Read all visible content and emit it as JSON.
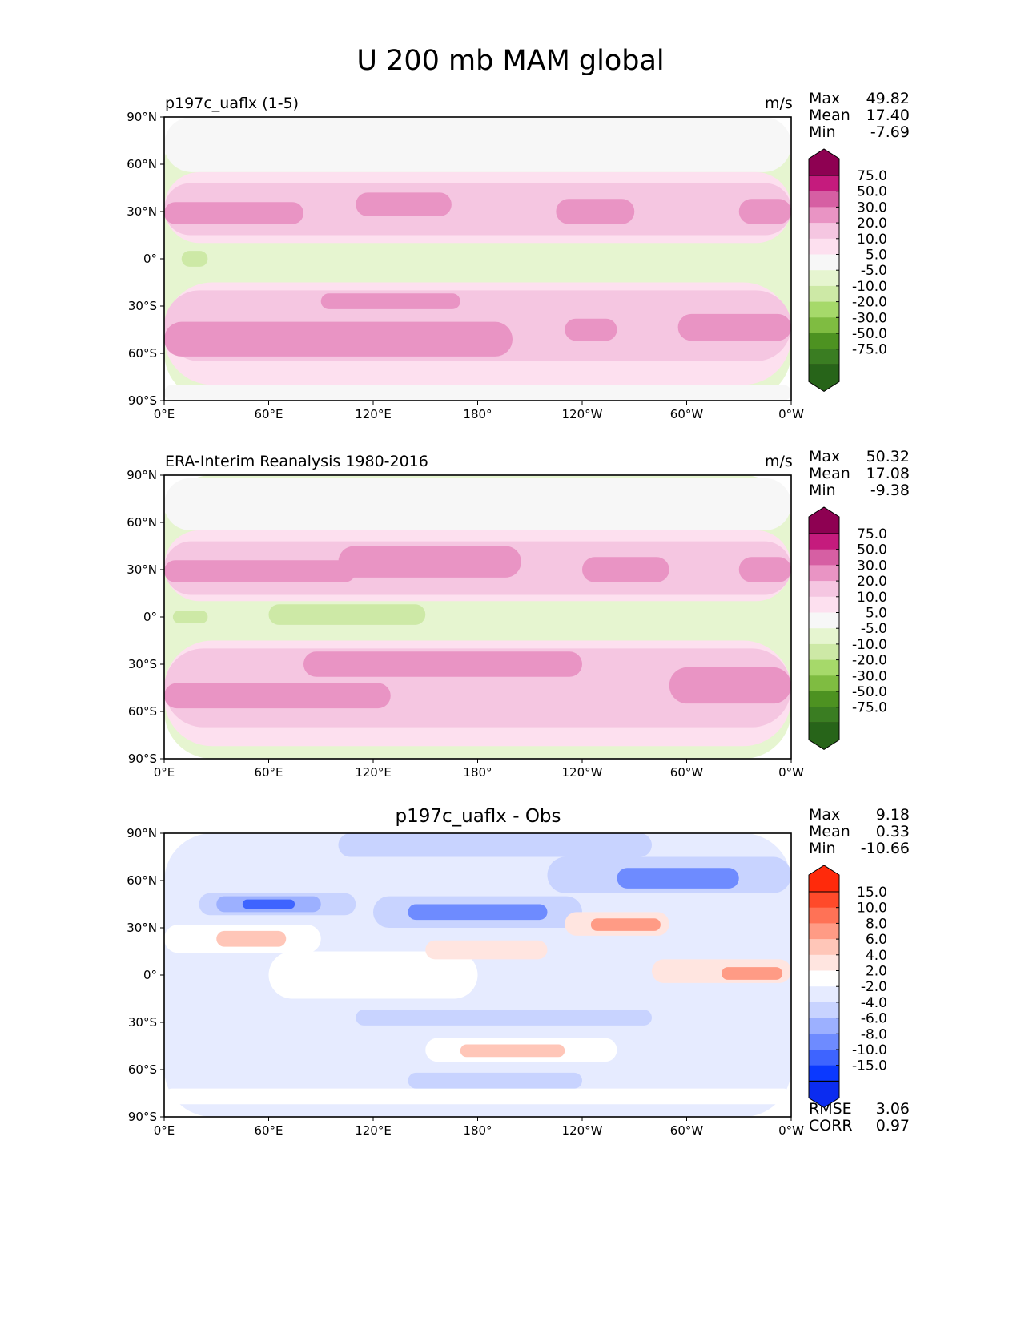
{
  "title": "U 200 mb MAM global",
  "panels": [
    {
      "id": "test",
      "left_title": "p197c_uaflx (1-5)",
      "center_title": "",
      "units": "m/s",
      "stats": [
        {
          "label": "Max",
          "value": "49.82"
        },
        {
          "label": "Mean",
          "value": "17.40"
        },
        {
          "label": "Min",
          "value": "-7.69"
        }
      ],
      "extra_stats": []
    },
    {
      "id": "ref",
      "left_title": "ERA-Interim Reanalysis 1980-2016",
      "center_title": "",
      "units": "m/s",
      "stats": [
        {
          "label": "Max",
          "value": "50.32"
        },
        {
          "label": "Mean",
          "value": "17.08"
        },
        {
          "label": "Min",
          "value": "-9.38"
        }
      ],
      "extra_stats": []
    },
    {
      "id": "diff",
      "left_title": "",
      "center_title": "p197c_uaflx - Obs",
      "units": "",
      "stats": [
        {
          "label": "Max",
          "value": "9.18"
        },
        {
          "label": "Mean",
          "value": "0.33"
        },
        {
          "label": "Min",
          "value": "-10.66"
        }
      ],
      "extra_stats": [
        {
          "label": "RMSE",
          "value": "3.06"
        },
        {
          "label": "CORR",
          "value": "0.97"
        }
      ]
    }
  ],
  "chart_data": [
    {
      "type": "heatmap",
      "title": "p197c_uaflx (1-5)",
      "units": "m/s",
      "x_ticks": [
        "0°E",
        "60°E",
        "120°E",
        "180°",
        "120°W",
        "60°W",
        "0°W"
      ],
      "y_ticks": [
        "90°N",
        "60°N",
        "30°N",
        "0°",
        "30°S",
        "60°S",
        "90°S"
      ],
      "xlim": [
        0,
        360
      ],
      "ylim": [
        -90,
        90
      ],
      "levels": [
        "-75.0",
        "-50.0",
        "-30.0",
        "-20.0",
        "-10.0",
        "-5.0",
        "5.0",
        "10.0",
        "20.0",
        "30.0",
        "50.0",
        "75.0"
      ],
      "colors": [
        "#276419",
        "#3a7d22",
        "#4d9221",
        "#7fbc41",
        "#a6d96a",
        "#cde9a6",
        "#e6f5d0",
        "#f7f7f7",
        "#fde0ef",
        "#f5c6e1",
        "#e994c4",
        "#d65fa3",
        "#c51b7d",
        "#8e0152"
      ],
      "bands": [
        {
          "lon": [
            0,
            360
          ],
          "lat": [
            -90,
            90
          ],
          "val": 2
        },
        {
          "lon": [
            0,
            360
          ],
          "lat": [
            55,
            90
          ],
          "val": 7
        },
        {
          "lon": [
            0,
            360
          ],
          "lat": [
            10,
            55
          ],
          "val": 15
        },
        {
          "lon": [
            0,
            360
          ],
          "lat": [
            15,
            48
          ],
          "val": 22
        },
        {
          "lon": [
            0,
            360
          ],
          "lat": [
            20,
            38
          ],
          "val": 26
        },
        {
          "lon": [
            0,
            80
          ],
          "lat": [
            22,
            36
          ],
          "val": 35
        },
        {
          "lon": [
            110,
            165
          ],
          "lat": [
            27,
            42
          ],
          "val": 35
        },
        {
          "lon": [
            225,
            270
          ],
          "lat": [
            22,
            38
          ],
          "val": 35
        },
        {
          "lon": [
            330,
            360
          ],
          "lat": [
            22,
            38
          ],
          "val": 35
        },
        {
          "lon": [
            0,
            360
          ],
          "lat": [
            -15,
            10
          ],
          "val": 2
        },
        {
          "lon": [
            0,
            360
          ],
          "lat": [
            -80,
            -15
          ],
          "val": 15
        },
        {
          "lon": [
            0,
            360
          ],
          "lat": [
            -65,
            -20
          ],
          "val": 22
        },
        {
          "lon": [
            0,
            200
          ],
          "lat": [
            -62,
            -40
          ],
          "val": 35
        },
        {
          "lon": [
            90,
            170
          ],
          "lat": [
            -32,
            -22
          ],
          "val": 35
        },
        {
          "lon": [
            230,
            260
          ],
          "lat": [
            -52,
            -38
          ],
          "val": 35
        },
        {
          "lon": [
            295,
            360
          ],
          "lat": [
            -52,
            -35
          ],
          "val": 35
        },
        {
          "lon": [
            0,
            360
          ],
          "lat": [
            -90,
            -80
          ],
          "val": 7
        },
        {
          "lon": [
            10,
            25
          ],
          "lat": [
            -5,
            5
          ],
          "val": -7
        }
      ]
    },
    {
      "type": "heatmap",
      "title": "ERA-Interim Reanalysis 1980-2016",
      "units": "m/s",
      "x_ticks": [
        "0°E",
        "60°E",
        "120°E",
        "180°",
        "120°W",
        "60°W",
        "0°W"
      ],
      "y_ticks": [
        "90°N",
        "60°N",
        "30°N",
        "0°",
        "30°S",
        "60°S",
        "90°S"
      ],
      "xlim": [
        0,
        360
      ],
      "ylim": [
        -90,
        90
      ],
      "levels": [
        "-75.0",
        "-50.0",
        "-30.0",
        "-20.0",
        "-10.0",
        "-5.0",
        "5.0",
        "10.0",
        "20.0",
        "30.0",
        "50.0",
        "75.0"
      ],
      "colors": [
        "#276419",
        "#3a7d22",
        "#4d9221",
        "#7fbc41",
        "#a6d96a",
        "#cde9a6",
        "#e6f5d0",
        "#f7f7f7",
        "#fde0ef",
        "#f5c6e1",
        "#e994c4",
        "#d65fa3",
        "#c51b7d",
        "#8e0152"
      ],
      "bands": [
        {
          "lon": [
            0,
            360
          ],
          "lat": [
            -90,
            90
          ],
          "val": 2
        },
        {
          "lon": [
            0,
            360
          ],
          "lat": [
            55,
            88
          ],
          "val": 7
        },
        {
          "lon": [
            0,
            360
          ],
          "lat": [
            10,
            55
          ],
          "val": 15
        },
        {
          "lon": [
            0,
            360
          ],
          "lat": [
            14,
            48
          ],
          "val": 22
        },
        {
          "lon": [
            0,
            360
          ],
          "lat": [
            20,
            40
          ],
          "val": 26
        },
        {
          "lon": [
            0,
            110
          ],
          "lat": [
            22,
            36
          ],
          "val": 35
        },
        {
          "lon": [
            100,
            205
          ],
          "lat": [
            25,
            45
          ],
          "val": 35
        },
        {
          "lon": [
            240,
            290
          ],
          "lat": [
            22,
            38
          ],
          "val": 35
        },
        {
          "lon": [
            330,
            360
          ],
          "lat": [
            22,
            38
          ],
          "val": 35
        },
        {
          "lon": [
            0,
            360
          ],
          "lat": [
            -15,
            10
          ],
          "val": 2
        },
        {
          "lon": [
            60,
            150
          ],
          "lat": [
            -5,
            8
          ],
          "val": -7
        },
        {
          "lon": [
            5,
            25
          ],
          "lat": [
            -4,
            4
          ],
          "val": -7
        },
        {
          "lon": [
            0,
            360
          ],
          "lat": [
            -82,
            -15
          ],
          "val": 15
        },
        {
          "lon": [
            0,
            360
          ],
          "lat": [
            -70,
            -20
          ],
          "val": 22
        },
        {
          "lon": [
            0,
            130
          ],
          "lat": [
            -58,
            -42
          ],
          "val": 35
        },
        {
          "lon": [
            80,
            240
          ],
          "lat": [
            -38,
            -22
          ],
          "val": 35
        },
        {
          "lon": [
            290,
            360
          ],
          "lat": [
            -55,
            -32
          ],
          "val": 35
        }
      ]
    },
    {
      "type": "heatmap",
      "title": "p197c_uaflx - Obs",
      "units": "",
      "x_ticks": [
        "0°E",
        "60°E",
        "120°E",
        "180°",
        "120°W",
        "60°W",
        "0°W"
      ],
      "y_ticks": [
        "90°N",
        "60°N",
        "30°N",
        "0°",
        "30°S",
        "60°S",
        "90°S"
      ],
      "xlim": [
        0,
        360
      ],
      "ylim": [
        -90,
        90
      ],
      "levels": [
        "-15.0",
        "-10.0",
        "-8.0",
        "-6.0",
        "-4.0",
        "-2.0",
        "2.0",
        "4.0",
        "6.0",
        "8.0",
        "10.0",
        "15.0"
      ],
      "colors": [
        "#0b2cf0",
        "#0b39ff",
        "#3e64ff",
        "#6e8bff",
        "#9cb0ff",
        "#c8d3ff",
        "#e6ebff",
        "#ffffff",
        "#ffe5e0",
        "#ffc6b8",
        "#ff9b85",
        "#ff7256",
        "#ff4a2a",
        "#ff2a0b"
      ],
      "bands": [
        {
          "lon": [
            0,
            360
          ],
          "lat": [
            -90,
            90
          ],
          "val": 0
        },
        {
          "lon": [
            100,
            280
          ],
          "lat": [
            75,
            90
          ],
          "val": -3
        },
        {
          "lon": [
            20,
            110
          ],
          "lat": [
            38,
            52
          ],
          "val": -3
        },
        {
          "lon": [
            30,
            90
          ],
          "lat": [
            40,
            50
          ],
          "val": -5
        },
        {
          "lon": [
            45,
            75
          ],
          "lat": [
            42,
            48
          ],
          "val": -9
        },
        {
          "lon": [
            120,
            240
          ],
          "lat": [
            30,
            50
          ],
          "val": -3
        },
        {
          "lon": [
            140,
            220
          ],
          "lat": [
            35,
            45
          ],
          "val": -7
        },
        {
          "lon": [
            220,
            360
          ],
          "lat": [
            52,
            75
          ],
          "val": -3
        },
        {
          "lon": [
            260,
            330
          ],
          "lat": [
            55,
            68
          ],
          "val": -7
        },
        {
          "lon": [
            0,
            90
          ],
          "lat": [
            14,
            32
          ],
          "val": 3
        },
        {
          "lon": [
            30,
            70
          ],
          "lat": [
            18,
            28
          ],
          "val": 7
        },
        {
          "lon": [
            60,
            180
          ],
          "lat": [
            -15,
            15
          ],
          "val": 3
        },
        {
          "lon": [
            150,
            220
          ],
          "lat": [
            10,
            22
          ],
          "val": 5
        },
        {
          "lon": [
            230,
            290
          ],
          "lat": [
            25,
            40
          ],
          "val": 5
        },
        {
          "lon": [
            245,
            285
          ],
          "lat": [
            28,
            36
          ],
          "val": 9
        },
        {
          "lon": [
            280,
            360
          ],
          "lat": [
            -5,
            10
          ],
          "val": 5
        },
        {
          "lon": [
            320,
            355
          ],
          "lat": [
            -3,
            5
          ],
          "val": 9
        },
        {
          "lon": [
            150,
            260
          ],
          "lat": [
            -55,
            -40
          ],
          "val": 3
        },
        {
          "lon": [
            170,
            230
          ],
          "lat": [
            -52,
            -44
          ],
          "val": 7
        },
        {
          "lon": [
            110,
            280
          ],
          "lat": [
            -32,
            -22
          ],
          "val": -3
        },
        {
          "lon": [
            0,
            360
          ],
          "lat": [
            -82,
            -72
          ],
          "val": 3
        },
        {
          "lon": [
            140,
            240
          ],
          "lat": [
            -72,
            -62
          ],
          "val": -3
        }
      ]
    }
  ]
}
